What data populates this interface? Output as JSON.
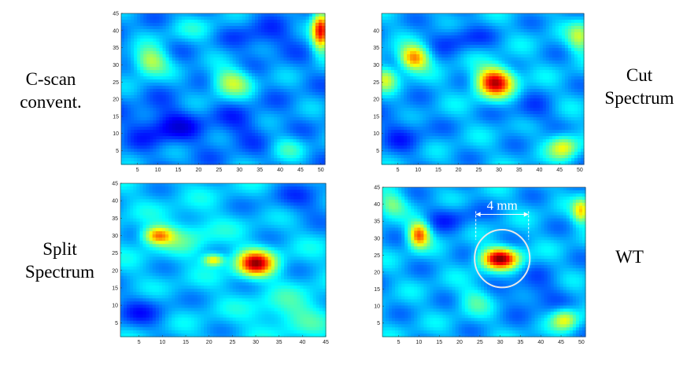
{
  "labels": {
    "tl": [
      "C-scan",
      "convent."
    ],
    "tr": [
      "Cut",
      "Spectrum"
    ],
    "bl": [
      "Split",
      "Spectrum"
    ],
    "br": [
      "WT"
    ]
  },
  "colormap": [
    "#00008f",
    "#0000ff",
    "#0080ff",
    "#00ffff",
    "#80ff80",
    "#ffff00",
    "#ff8000",
    "#ff0000",
    "#800000"
  ],
  "chart_data": [
    {
      "type": "heatmap",
      "id": "tl",
      "title": "",
      "xlim": [
        1,
        51
      ],
      "ylim": [
        1,
        45
      ],
      "xticks": [
        5,
        10,
        15,
        20,
        25,
        30,
        35,
        40,
        45,
        50
      ],
      "yticks": [
        5,
        10,
        15,
        20,
        25,
        30,
        35,
        40,
        45
      ],
      "base_level": 0.27,
      "blobs": [
        {
          "x": 8,
          "y": 31,
          "sx": 3.0,
          "sy": 3.0,
          "v": 0.3
        },
        {
          "x": 28,
          "y": 25,
          "sx": 3.5,
          "sy": 3.0,
          "v": 0.28
        },
        {
          "x": 50,
          "y": 40,
          "sx": 1.5,
          "sy": 4.0,
          "v": 0.6
        },
        {
          "x": 42,
          "y": 6,
          "sx": 3.0,
          "sy": 2.5,
          "v": 0.12
        },
        {
          "x": 20,
          "y": 40,
          "sx": 6.0,
          "sy": 3.0,
          "v": 0.08
        },
        {
          "x": 12,
          "y": 12,
          "sx": 6.0,
          "sy": 4.0,
          "v": -0.15
        },
        {
          "x": 35,
          "y": 38,
          "sx": 6.0,
          "sy": 3.0,
          "v": -0.1
        },
        {
          "x": 30,
          "y": 12,
          "sx": 5.0,
          "sy": 4.0,
          "v": -0.08
        }
      ]
    },
    {
      "type": "heatmap",
      "id": "tr",
      "title": "",
      "xlim": [
        1,
        51
      ],
      "ylim": [
        1,
        45
      ],
      "xticks": [
        5,
        10,
        15,
        20,
        25,
        30,
        35,
        40,
        45,
        50
      ],
      "yticks": [
        5,
        10,
        15,
        20,
        25,
        30,
        35,
        40
      ],
      "base_level": 0.3,
      "blobs": [
        {
          "x": 29,
          "y": 25,
          "sx": 3.2,
          "sy": 3.0,
          "v": 0.62
        },
        {
          "x": 9,
          "y": 32,
          "sx": 2.5,
          "sy": 2.5,
          "v": 0.45
        },
        {
          "x": 2,
          "y": 26,
          "sx": 2.0,
          "sy": 2.5,
          "v": 0.25
        },
        {
          "x": 46,
          "y": 6,
          "sx": 2.5,
          "sy": 2.5,
          "v": 0.3
        },
        {
          "x": 50,
          "y": 38,
          "sx": 2.0,
          "sy": 3.0,
          "v": 0.25
        },
        {
          "x": 38,
          "y": 16,
          "sx": 4.0,
          "sy": 3.0,
          "v": -0.1
        },
        {
          "x": 20,
          "y": 38,
          "sx": 5.0,
          "sy": 3.0,
          "v": -0.12
        },
        {
          "x": 6,
          "y": 10,
          "sx": 5.0,
          "sy": 5.0,
          "v": -0.1
        }
      ]
    },
    {
      "type": "heatmap",
      "id": "bl",
      "title": "",
      "xlim": [
        1,
        45
      ],
      "ylim": [
        1,
        45
      ],
      "xticks": [
        5,
        10,
        15,
        20,
        25,
        30,
        35,
        40,
        45
      ],
      "yticks": [
        5,
        10,
        15,
        20,
        25,
        30,
        35,
        40,
        45
      ],
      "base_level": 0.32,
      "blobs": [
        {
          "x": 30,
          "y": 22,
          "sx": 2.8,
          "sy": 2.6,
          "v": 0.6
        },
        {
          "x": 9,
          "y": 30,
          "sx": 2.2,
          "sy": 1.8,
          "v": 0.4
        },
        {
          "x": 21,
          "y": 23,
          "sx": 1.5,
          "sy": 1.2,
          "v": 0.35
        },
        {
          "x": 38,
          "y": 8,
          "sx": 6.0,
          "sy": 4.0,
          "v": 0.12
        },
        {
          "x": 15,
          "y": 30,
          "sx": 5.0,
          "sy": 4.0,
          "v": 0.1
        },
        {
          "x": 5,
          "y": 8,
          "sx": 5.0,
          "sy": 4.0,
          "v": -0.12
        },
        {
          "x": 40,
          "y": 40,
          "sx": 6.0,
          "sy": 4.0,
          "v": -0.1
        }
      ]
    },
    {
      "type": "heatmap",
      "id": "br",
      "title": "",
      "xlim": [
        1,
        51
      ],
      "ylim": [
        1,
        45
      ],
      "xticks": [
        5,
        10,
        15,
        20,
        25,
        30,
        35,
        40,
        45,
        50
      ],
      "yticks": [
        5,
        10,
        15,
        20,
        25,
        30,
        35,
        40,
        45
      ],
      "base_level": 0.3,
      "blobs": [
        {
          "x": 30,
          "y": 24,
          "sx": 3.2,
          "sy": 2.2,
          "v": 0.65
        },
        {
          "x": 10,
          "y": 31,
          "sx": 1.8,
          "sy": 2.6,
          "v": 0.5
        },
        {
          "x": 50,
          "y": 38,
          "sx": 1.5,
          "sy": 2.5,
          "v": 0.35
        },
        {
          "x": 46,
          "y": 6,
          "sx": 2.2,
          "sy": 2.2,
          "v": 0.3
        },
        {
          "x": 3,
          "y": 40,
          "sx": 2.5,
          "sy": 2.5,
          "v": 0.2
        },
        {
          "x": 24,
          "y": 12,
          "sx": 3.0,
          "sy": 3.0,
          "v": 0.12
        },
        {
          "x": 18,
          "y": 36,
          "sx": 5.0,
          "sy": 3.0,
          "v": -0.1
        },
        {
          "x": 38,
          "y": 14,
          "sx": 5.0,
          "sy": 4.0,
          "v": -0.1
        }
      ],
      "annotation": {
        "text": "4 mm",
        "arrow_x": [
          24,
          37
        ],
        "arrow_y": 37,
        "ellipse": {
          "cx": 30.5,
          "cy": 24,
          "rx": 6.8,
          "ry": 8.5
        }
      }
    }
  ]
}
